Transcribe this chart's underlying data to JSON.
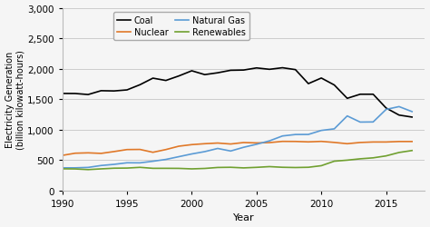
{
  "years": [
    1990,
    1991,
    1992,
    1993,
    1994,
    1995,
    1996,
    1997,
    1998,
    1999,
    2000,
    2001,
    2002,
    2003,
    2004,
    2005,
    2006,
    2007,
    2008,
    2009,
    2010,
    2011,
    2012,
    2013,
    2014,
    2015,
    2016,
    2017
  ],
  "coal": [
    1594,
    1593,
    1576,
    1639,
    1635,
    1652,
    1737,
    1845,
    1807,
    1881,
    1966,
    1903,
    1933,
    1974,
    1978,
    2013,
    1990,
    2016,
    1985,
    1755,
    1847,
    1733,
    1514,
    1581,
    1581,
    1355,
    1239,
    1206
  ],
  "nuclear": [
    577,
    613,
    619,
    610,
    640,
    673,
    675,
    628,
    673,
    728,
    754,
    769,
    780,
    764,
    788,
    782,
    787,
    807,
    806,
    799,
    807,
    790,
    769,
    789,
    797,
    797,
    805,
    805
  ],
  "natural_gas": [
    373,
    373,
    380,
    411,
    430,
    456,
    455,
    481,
    511,
    556,
    601,
    639,
    691,
    649,
    710,
    760,
    816,
    896,
    920,
    921,
    987,
    1013,
    1225,
    1124,
    1126,
    1332,
    1378,
    1296
  ],
  "renewables": [
    357,
    355,
    344,
    356,
    367,
    369,
    381,
    365,
    365,
    364,
    356,
    363,
    379,
    382,
    372,
    381,
    393,
    382,
    378,
    382,
    408,
    482,
    499,
    521,
    537,
    569,
    625,
    657
  ],
  "coal_color": "#000000",
  "nuclear_color": "#e07828",
  "natural_gas_color": "#5b9bd5",
  "renewables_color": "#70a030",
  "ylim": [
    0,
    3000
  ],
  "xlim": [
    1990,
    2018
  ],
  "yticks": [
    0,
    500,
    1000,
    1500,
    2000,
    2500,
    3000
  ],
  "xticks": [
    1990,
    1995,
    2000,
    2005,
    2010,
    2015
  ],
  "ylabel": "Electricity Generation\n(billion kilowatt-hours)",
  "xlabel": "Year",
  "background_color": "#f5f5f5",
  "grid_color": "#cccccc",
  "legend_order": [
    "Coal",
    "Nuclear",
    "Natural Gas",
    "Renewables"
  ]
}
